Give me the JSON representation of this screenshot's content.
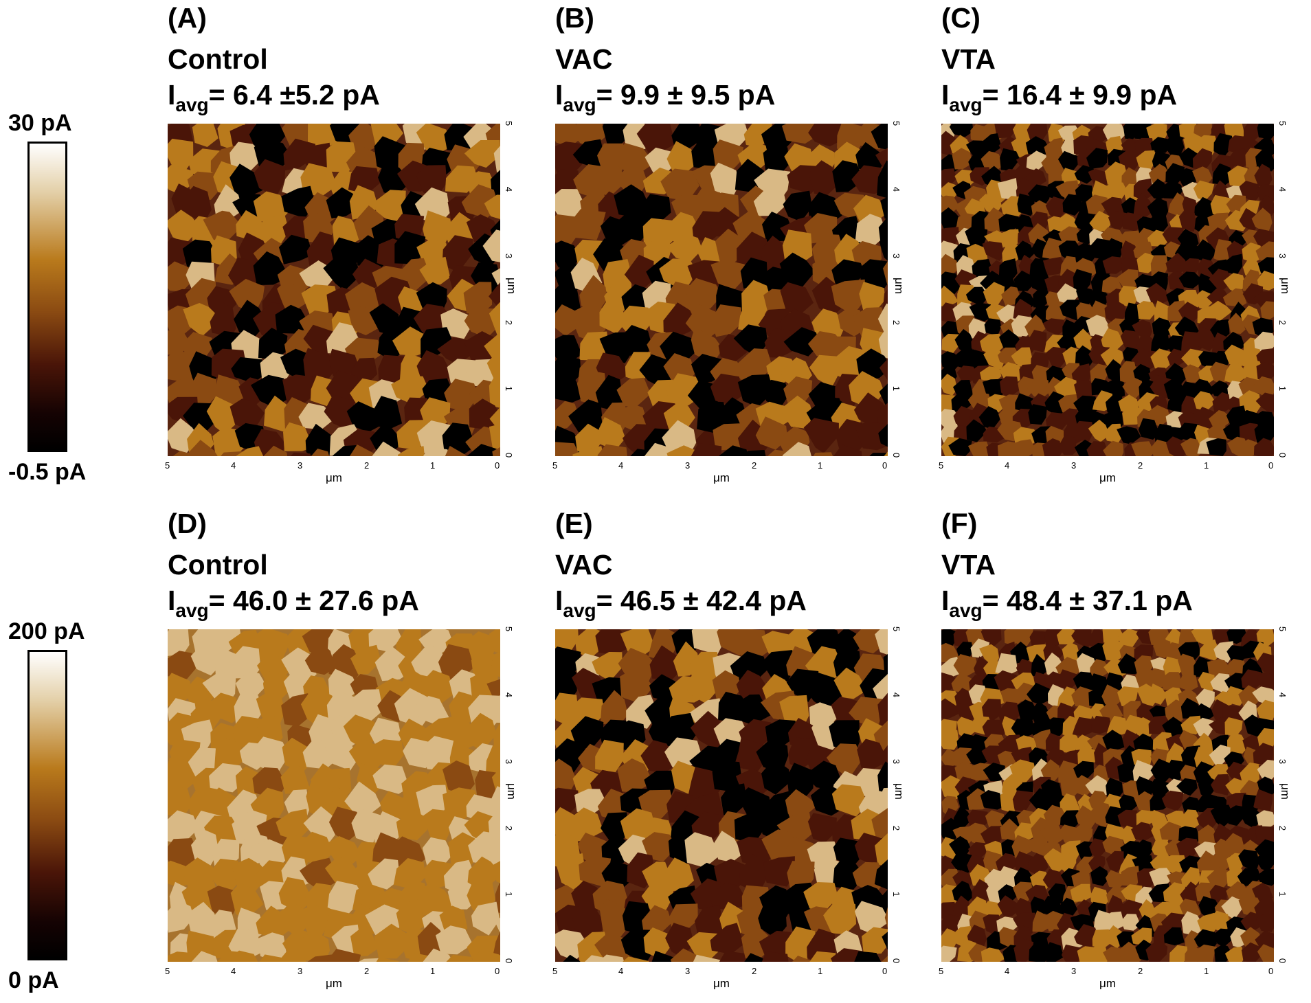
{
  "colorbars": [
    {
      "max_label": "30 pA",
      "min_label": "-0.5 pA"
    },
    {
      "max_label": "200 pA",
      "min_label": "0 pA"
    }
  ],
  "panels": [
    {
      "tag": "(A)",
      "condition": "Control",
      "iavg_prefix": "I",
      "iavg_sub": "avg",
      "iavg_value": "= 6.4 ±5.2  pA",
      "brightness": 0.38
    },
    {
      "tag": "(B)",
      "condition": "VAC",
      "iavg_prefix": "I",
      "iavg_sub": "avg",
      "iavg_value": "= 9.9 ± 9.5 pA",
      "brightness": 0.34
    },
    {
      "tag": "(C)",
      "condition": "VTA",
      "iavg_prefix": "I",
      "iavg_sub": "avg",
      "iavg_value": "= 16.4 ± 9.9 pA",
      "brightness": 0.3
    },
    {
      "tag": "(D)",
      "condition": "Control",
      "iavg_prefix": "I",
      "iavg_sub": "avg",
      "iavg_value": "= 46.0 ± 27.6 pA",
      "brightness": 0.5
    },
    {
      "tag": "(E)",
      "condition": "VAC",
      "iavg_prefix": "I",
      "iavg_sub": "avg",
      "iavg_value": "= 46.5 ± 42.4 pA",
      "brightness": 0.36
    },
    {
      "tag": "(F)",
      "condition": "VTA",
      "iavg_prefix": "I",
      "iavg_sub": "avg",
      "iavg_value": "= 48.4 ± 37.1 pA",
      "brightness": 0.34
    }
  ],
  "axis": {
    "x_ticks": [
      "5",
      "4",
      "3",
      "2",
      "1",
      "0"
    ],
    "y_ticks": [
      "5",
      "4",
      "3",
      "2",
      "1",
      "0"
    ],
    "unit": "μm"
  },
  "colors": {
    "white": "#ffffff",
    "tan": "#b97a1c",
    "brown": "#8a4a12",
    "dark": "#4a1508",
    "black": "#000000"
  }
}
